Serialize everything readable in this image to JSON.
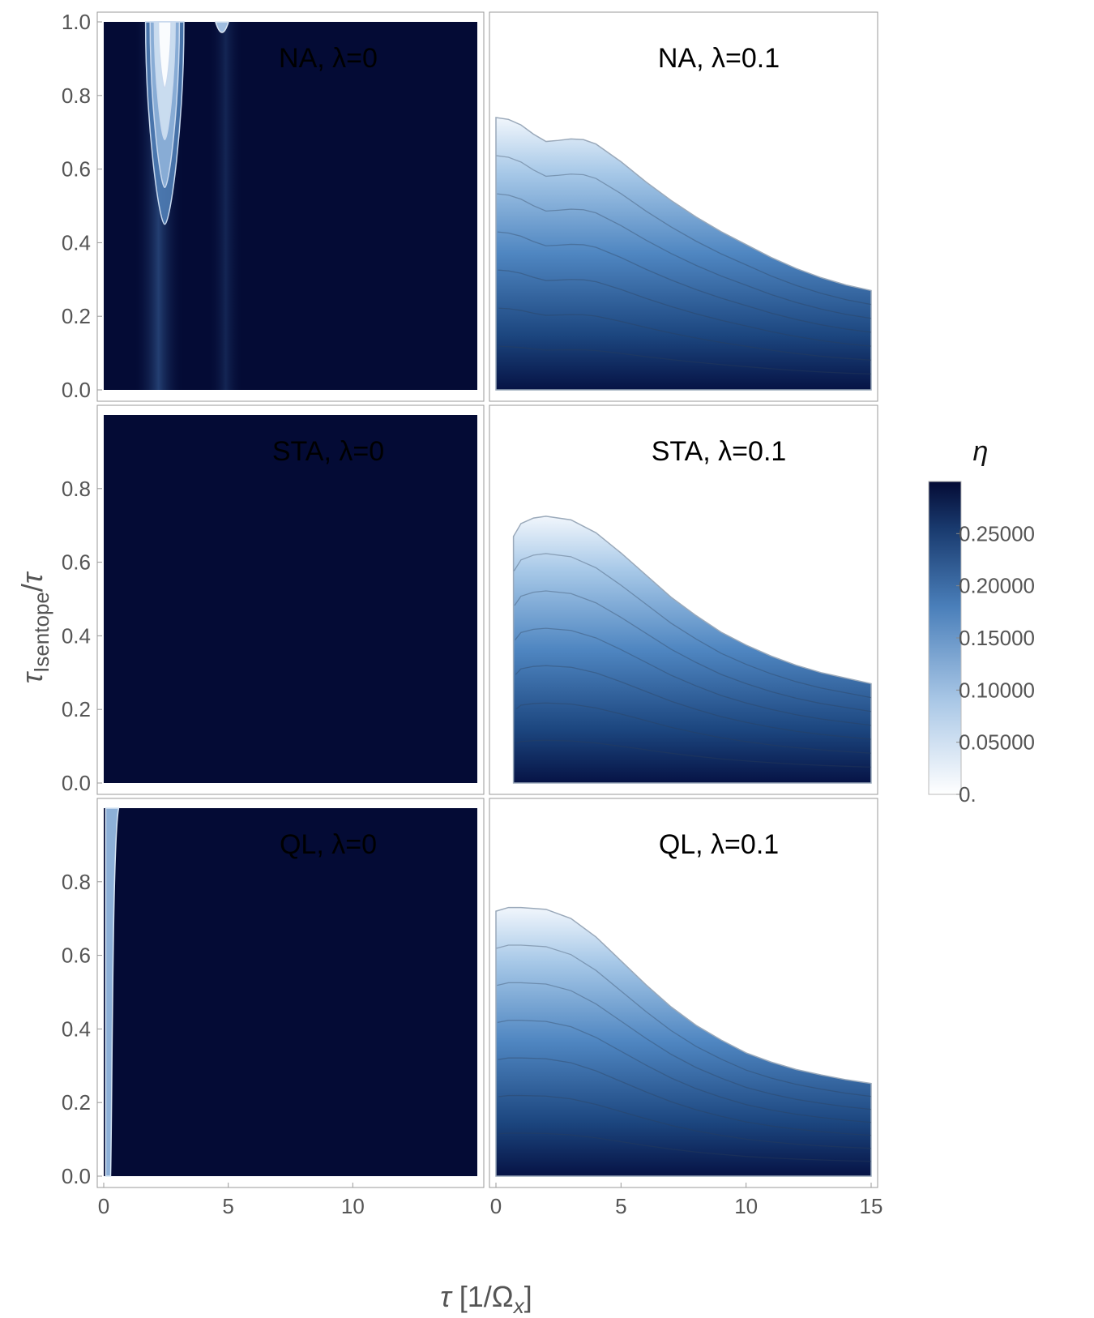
{
  "chart_data": {
    "type": "heatmap",
    "layout": "3 rows x 2 columns of contour density plots",
    "xlabel": "τ [1/Ωx]",
    "ylabel": "τIsentope/τ",
    "x_ticks_left": [
      "0",
      "5",
      "10"
    ],
    "x_ticks_right": [
      "0",
      "5",
      "10",
      "15"
    ],
    "y_ticks_top_row": [
      "0.0",
      "0.2",
      "0.4",
      "0.6",
      "0.8",
      "1.0"
    ],
    "y_ticks_other_rows": [
      "0.0",
      "0.2",
      "0.4",
      "0.6",
      "0.8"
    ],
    "xlim": [
      0,
      15
    ],
    "ylim": [
      0,
      1
    ],
    "colorbar": {
      "label": "η",
      "range": [
        0,
        0.3
      ],
      "ticks": [
        "0.",
        "0.05000",
        "0.10000",
        "0.15000",
        "0.20000",
        "0.25000"
      ],
      "tick_values": [
        0,
        0.05,
        0.1,
        0.15,
        0.2,
        0.25
      ],
      "color_low": "#ffffff",
      "color_high": "#040b35"
    },
    "panels": [
      {
        "id": "na-0",
        "title": "NA, λ=0",
        "description": "nearly uniform high η (dark) with light spikes near τ≈2 and τ≈5 at top",
        "boundary": []
      },
      {
        "id": "na-01",
        "title": "NA, λ=0.1",
        "description": "η region bounded above by decreasing curve",
        "boundary": [
          [
            0,
            0.74
          ],
          [
            0.5,
            0.735
          ],
          [
            1,
            0.72
          ],
          [
            1.5,
            0.695
          ],
          [
            2,
            0.675
          ],
          [
            2.5,
            0.678
          ],
          [
            3,
            0.682
          ],
          [
            3.5,
            0.68
          ],
          [
            4,
            0.668
          ],
          [
            5,
            0.62
          ],
          [
            6,
            0.565
          ],
          [
            7,
            0.515
          ],
          [
            8,
            0.47
          ],
          [
            9,
            0.43
          ],
          [
            10,
            0.395
          ],
          [
            11,
            0.36
          ],
          [
            12,
            0.33
          ],
          [
            13,
            0.305
          ],
          [
            14,
            0.285
          ],
          [
            15,
            0.27
          ]
        ]
      },
      {
        "id": "sta-0",
        "title": "STA, λ=0",
        "description": "uniform high η (dark)",
        "boundary": []
      },
      {
        "id": "sta-01",
        "title": "STA, λ=0.1",
        "description": "η region bounded above by decreasing curve, onset near τ≈0.7",
        "boundary": [
          [
            0.7,
            0.67
          ],
          [
            1,
            0.705
          ],
          [
            1.5,
            0.72
          ],
          [
            2,
            0.725
          ],
          [
            3,
            0.715
          ],
          [
            4,
            0.68
          ],
          [
            5,
            0.625
          ],
          [
            6,
            0.565
          ],
          [
            7,
            0.505
          ],
          [
            8,
            0.455
          ],
          [
            9,
            0.41
          ],
          [
            10,
            0.375
          ],
          [
            11,
            0.345
          ],
          [
            12,
            0.32
          ],
          [
            13,
            0.3
          ],
          [
            14,
            0.285
          ],
          [
            15,
            0.27
          ]
        ]
      },
      {
        "id": "ql-0",
        "title": "QL, λ=0",
        "description": "uniform high η (dark) with thin light strip at τ≈0",
        "boundary": []
      },
      {
        "id": "ql-01",
        "title": "QL, λ=0.1",
        "description": "η region bounded above by decreasing curve",
        "boundary": [
          [
            0,
            0.72
          ],
          [
            0.5,
            0.73
          ],
          [
            1,
            0.73
          ],
          [
            2,
            0.725
          ],
          [
            3,
            0.7
          ],
          [
            4,
            0.65
          ],
          [
            5,
            0.585
          ],
          [
            6,
            0.52
          ],
          [
            7,
            0.46
          ],
          [
            8,
            0.41
          ],
          [
            9,
            0.37
          ],
          [
            10,
            0.335
          ],
          [
            11,
            0.31
          ],
          [
            12,
            0.29
          ],
          [
            13,
            0.275
          ],
          [
            14,
            0.262
          ],
          [
            15,
            0.252
          ]
        ]
      }
    ]
  }
}
